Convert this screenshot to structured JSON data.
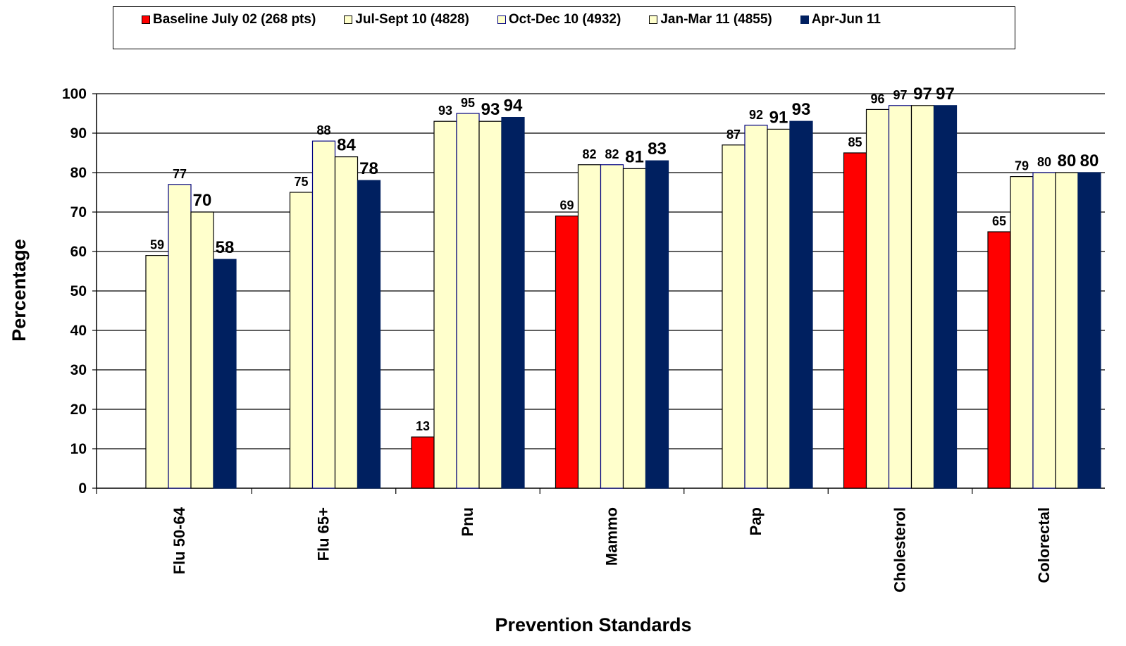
{
  "chart_data": {
    "type": "bar",
    "xlabel": "Prevention Standards",
    "ylabel": "Percentage",
    "ylim": [
      0,
      100
    ],
    "yticks": [
      0,
      10,
      20,
      30,
      40,
      50,
      60,
      70,
      80,
      90,
      100
    ],
    "grid": true,
    "legend_position": "top",
    "categories": [
      "Flu 50-64",
      "Flu 65+",
      "Pnu",
      "Mammo",
      "Pap",
      "Cholesterol",
      "Colorectal"
    ],
    "series": [
      {
        "name": "Baseline July 02 (268 pts)",
        "color": "#ff0000",
        "border": "#000000",
        "values": [
          null,
          null,
          13,
          69,
          null,
          85,
          65
        ]
      },
      {
        "name": "Jul-Sept 10 (4828)",
        "color": "#ffffcc",
        "border": "#000000",
        "values": [
          59,
          75,
          93,
          82,
          87,
          96,
          79
        ]
      },
      {
        "name": "Oct-Dec 10 (4932)",
        "color": "#ffffcc",
        "border": "#000080",
        "values": [
          77,
          88,
          95,
          82,
          92,
          97,
          80
        ]
      },
      {
        "name": "Jan-Mar 11 (4855)",
        "color": "#ffffcc",
        "border": "#000000",
        "values": [
          70,
          84,
          93,
          81,
          91,
          97,
          80
        ]
      },
      {
        "name": "Apr-Jun 11",
        "color": "#002060",
        "border": "#002060",
        "values": [
          58,
          78,
          94,
          83,
          93,
          97,
          80
        ]
      }
    ]
  }
}
